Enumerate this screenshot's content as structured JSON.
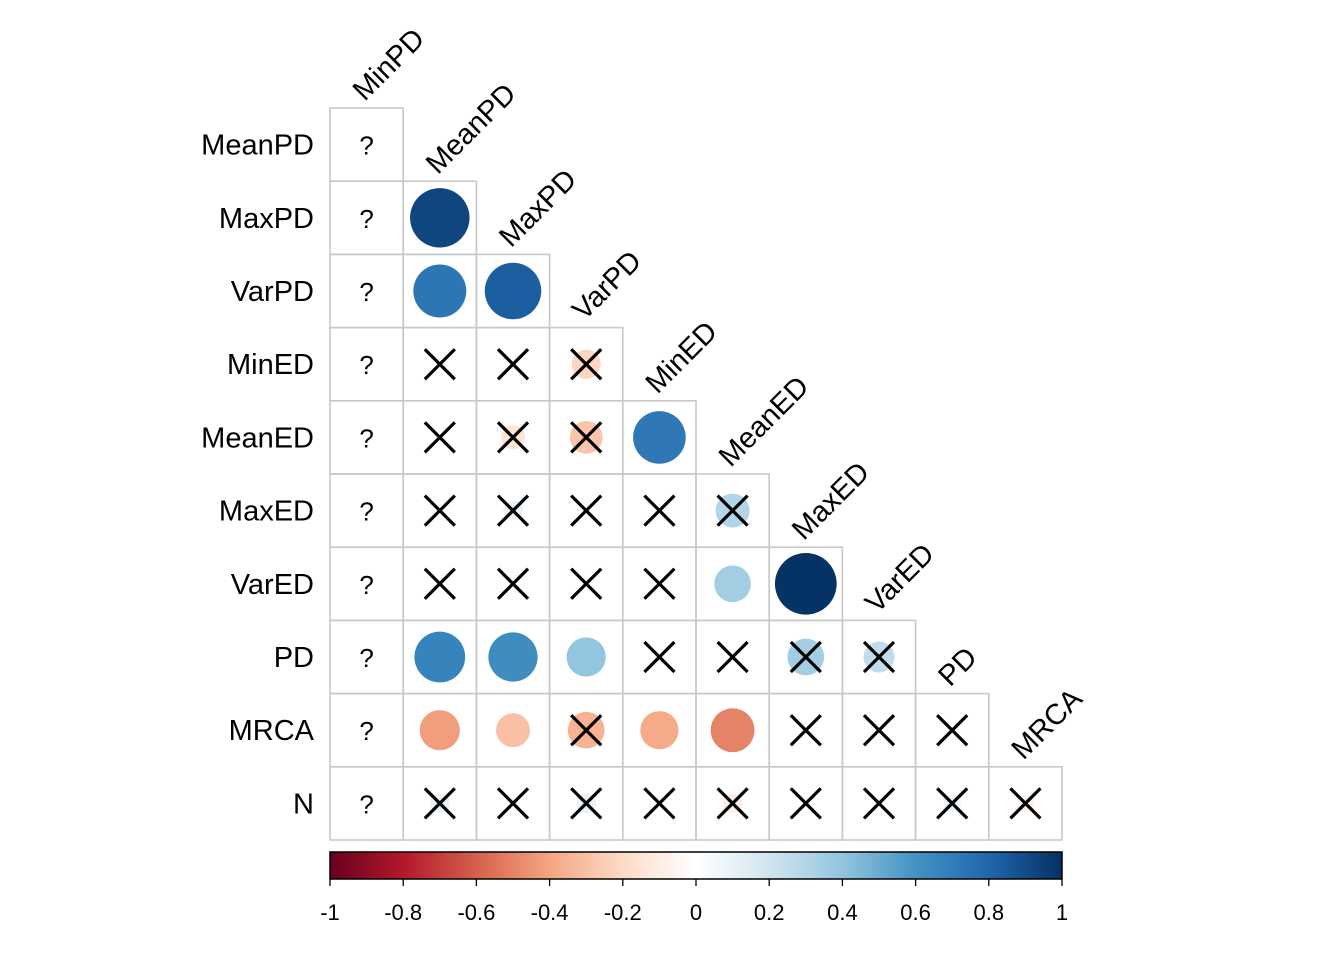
{
  "chart_data": {
    "type": "heatmap",
    "style": "correlation matrix (lower triangle, circles), non-significant cells crossed",
    "col_labels": [
      "MinPD",
      "MeanPD",
      "MaxPD",
      "VarPD",
      "MinED",
      "MeanED",
      "MaxED",
      "VarED",
      "PD",
      "MRCA"
    ],
    "row_labels": [
      "MeanPD",
      "MaxPD",
      "VarPD",
      "MinED",
      "MeanED",
      "MaxED",
      "VarED",
      "PD",
      "MRCA",
      "N"
    ],
    "missing_symbol": "?",
    "matrix": [
      [
        null,
        null,
        null,
        null,
        null,
        null,
        null,
        null,
        null,
        null
      ],
      [
        null,
        0.92,
        null,
        null,
        null,
        null,
        null,
        null,
        null,
        null
      ],
      [
        null,
        0.73,
        0.83,
        null,
        null,
        null,
        null,
        null,
        null,
        null
      ],
      [
        null,
        0.0,
        0.0,
        -0.22,
        null,
        null,
        null,
        null,
        null,
        null
      ],
      [
        null,
        0.0,
        -0.15,
        -0.28,
        0.72,
        null,
        null,
        null,
        null,
        null
      ],
      [
        null,
        0.0,
        0.1,
        0.0,
        0.0,
        0.3,
        null,
        null,
        null,
        null
      ],
      [
        null,
        0.0,
        0.0,
        0.0,
        0.0,
        0.35,
        0.99,
        null,
        null,
        null
      ],
      [
        null,
        0.67,
        0.63,
        0.4,
        -0.03,
        0.0,
        0.35,
        0.25,
        null,
        null
      ],
      [
        null,
        -0.42,
        -0.3,
        -0.35,
        -0.38,
        -0.5,
        0.0,
        0.0,
        0.0,
        null
      ],
      [
        null,
        0.1,
        0.0,
        0.1,
        0.0,
        -0.1,
        0.0,
        0.0,
        0.08,
        -0.08
      ]
    ],
    "significant": [
      [
        false,
        false,
        false,
        false,
        false,
        false,
        false,
        false,
        false,
        false
      ],
      [
        false,
        true,
        false,
        false,
        false,
        false,
        false,
        false,
        false,
        false
      ],
      [
        false,
        true,
        true,
        false,
        false,
        false,
        false,
        false,
        false,
        false
      ],
      [
        false,
        false,
        false,
        false,
        false,
        false,
        false,
        false,
        false,
        false
      ],
      [
        false,
        false,
        false,
        false,
        true,
        false,
        false,
        false,
        false,
        false
      ],
      [
        false,
        false,
        false,
        false,
        false,
        false,
        false,
        false,
        false,
        false
      ],
      [
        false,
        false,
        false,
        false,
        false,
        true,
        true,
        false,
        false,
        false
      ],
      [
        false,
        true,
        true,
        true,
        false,
        false,
        false,
        false,
        false,
        false
      ],
      [
        false,
        true,
        true,
        false,
        true,
        true,
        false,
        false,
        false,
        false
      ],
      [
        false,
        false,
        false,
        false,
        false,
        false,
        false,
        false,
        false,
        false
      ]
    ],
    "colorbar": {
      "range": [
        -1,
        1
      ],
      "ticks": [
        "-1",
        "-0.8",
        "-0.6",
        "-0.4",
        "-0.2",
        "0",
        "0.2",
        "0.4",
        "0.6",
        "0.8",
        "1"
      ],
      "stops": [
        "#67001F",
        "#B2182B",
        "#D6604D",
        "#F4A582",
        "#FDDBC7",
        "#FFFFFF",
        "#D1E5F0",
        "#92C5DE",
        "#4393C3",
        "#2166AC",
        "#053061"
      ]
    }
  }
}
